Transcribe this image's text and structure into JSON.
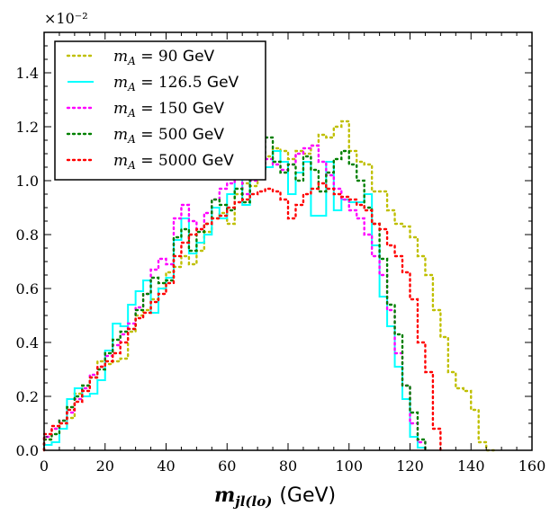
{
  "chart_data": {
    "type": "line",
    "title": "",
    "xlabel": "m_{jl(lo)} (GeV)",
    "xlabel_math": "m",
    "xlabel_sub": "jl(lo)",
    "xlabel_unit": "(GeV)",
    "ylabel": "",
    "y_multiplier": "×10⁻²",
    "xlim": [
      0,
      160
    ],
    "ylim": [
      0,
      1.55
    ],
    "x_ticks": [
      0,
      20,
      40,
      60,
      80,
      100,
      120,
      140,
      160
    ],
    "x_tick_labels": [
      "0",
      "20",
      "40",
      "60",
      "80",
      "100",
      "120",
      "140",
      "160"
    ],
    "y_ticks": [
      0,
      0.2,
      0.4,
      0.6,
      0.8,
      1.0,
      1.2,
      1.4
    ],
    "y_tick_labels": [
      "0.0",
      "0.2",
      "0.4",
      "0.6",
      "0.8",
      "1.0",
      "1.2",
      "1.4"
    ],
    "bin_width": 2.5,
    "bin_edges_start": 0,
    "legend_position": "upper-left",
    "series": [
      {
        "name": "m_A = 90 GeV",
        "legend_label": "mA = 90  GeV",
        "color": "#bfbf00",
        "style": "dotted",
        "values": [
          0.04,
          0.08,
          0.1,
          0.12,
          0.21,
          0.24,
          0.27,
          0.33,
          0.32,
          0.33,
          0.34,
          0.44,
          0.5,
          0.52,
          0.56,
          0.6,
          0.66,
          0.68,
          0.72,
          0.69,
          0.74,
          0.81,
          0.86,
          0.88,
          0.84,
          0.95,
          0.99,
          0.98,
          1.09,
          1.09,
          1.12,
          1.11,
          1.08,
          1.11,
          1.1,
          1.13,
          1.17,
          1.16,
          1.2,
          1.22,
          1.11,
          1.07,
          1.06,
          0.96,
          0.96,
          0.89,
          0.84,
          0.83,
          0.79,
          0.72,
          0.65,
          0.52,
          0.42,
          0.29,
          0.23,
          0.22,
          0.15,
          0.03,
          0.0
        ]
      },
      {
        "name": "m_A = 126.5 GeV",
        "legend_label": "mA = 126.5  GeV",
        "color": "#00ffff",
        "style": "solid",
        "values": [
          0.02,
          0.03,
          0.08,
          0.19,
          0.23,
          0.2,
          0.21,
          0.26,
          0.37,
          0.47,
          0.46,
          0.54,
          0.59,
          0.63,
          0.51,
          0.6,
          0.64,
          0.78,
          0.86,
          0.73,
          0.77,
          0.8,
          0.9,
          0.86,
          0.95,
          1.01,
          0.91,
          1.05,
          1.02,
          1.05,
          1.11,
          1.07,
          0.95,
          1.03,
          1.07,
          0.87,
          0.87,
          1.07,
          0.89,
          0.93,
          0.92,
          0.92,
          0.95,
          0.76,
          0.57,
          0.46,
          0.31,
          0.19,
          0.05,
          0.01
        ]
      },
      {
        "name": "m_A = 150 GeV",
        "legend_label": "mA = 150  GeV",
        "color": "#ff00ff",
        "style": "dotted",
        "values": [
          0.05,
          0.08,
          0.11,
          0.14,
          0.19,
          0.23,
          0.28,
          0.31,
          0.35,
          0.39,
          0.43,
          0.47,
          0.53,
          0.58,
          0.67,
          0.71,
          0.69,
          0.86,
          0.91,
          0.85,
          0.82,
          0.88,
          0.93,
          0.97,
          0.99,
          1.01,
          0.95,
          1.0,
          1.05,
          1.08,
          1.06,
          1.04,
          1.06,
          1.1,
          1.12,
          1.13,
          1.07,
          1.02,
          0.97,
          0.93,
          0.89,
          0.86,
          0.8,
          0.72,
          0.65,
          0.52,
          0.36,
          0.24,
          0.1,
          0.03
        ]
      },
      {
        "name": "m_A = 500 GeV",
        "legend_label": "mA = 500  GeV",
        "color": "#008000",
        "style": "dotted",
        "values": [
          0.04,
          0.06,
          0.11,
          0.16,
          0.2,
          0.24,
          0.27,
          0.3,
          0.36,
          0.41,
          0.44,
          0.45,
          0.52,
          0.58,
          0.64,
          0.62,
          0.63,
          0.79,
          0.82,
          0.74,
          0.81,
          0.84,
          0.93,
          0.91,
          0.89,
          0.97,
          0.92,
          1.06,
          1.03,
          1.16,
          1.07,
          1.03,
          1.06,
          1.0,
          1.09,
          1.04,
          0.96,
          1.03,
          1.08,
          1.11,
          1.06,
          1.0,
          0.9,
          0.84,
          0.71,
          0.54,
          0.43,
          0.24,
          0.14,
          0.04
        ]
      },
      {
        "name": "m_A = 5000 GeV",
        "legend_label": "mA = 5000  GeV",
        "color": "#ff0000",
        "style": "dotted",
        "values": [
          0.06,
          0.09,
          0.1,
          0.15,
          0.18,
          0.22,
          0.27,
          0.31,
          0.33,
          0.36,
          0.4,
          0.45,
          0.49,
          0.51,
          0.55,
          0.58,
          0.62,
          0.72,
          0.77,
          0.8,
          0.82,
          0.84,
          0.86,
          0.87,
          0.9,
          0.92,
          0.93,
          0.95,
          0.96,
          0.97,
          0.96,
          0.93,
          0.86,
          0.91,
          0.95,
          0.97,
          0.99,
          0.97,
          0.95,
          0.94,
          0.93,
          0.91,
          0.89,
          0.84,
          0.82,
          0.76,
          0.72,
          0.66,
          0.56,
          0.4,
          0.29,
          0.08
        ]
      }
    ]
  }
}
